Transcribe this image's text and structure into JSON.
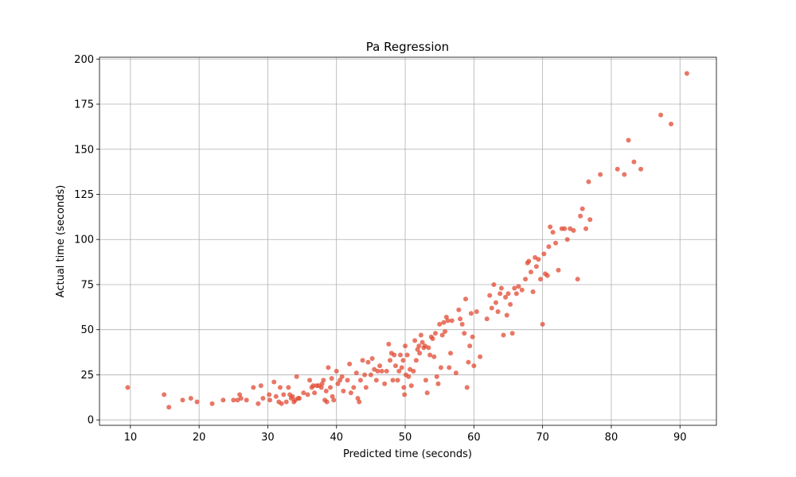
{
  "chart_data": {
    "type": "scatter",
    "title": "Pa Regression",
    "xlabel": "Predicted time (seconds)",
    "ylabel": "Actual time (seconds)",
    "xlim": [
      5.5,
      95.3
    ],
    "ylim": [
      -3,
      201
    ],
    "xticks": [
      10,
      20,
      30,
      40,
      50,
      60,
      70,
      80,
      90
    ],
    "yticks": [
      0,
      25,
      50,
      75,
      100,
      125,
      150,
      175,
      200
    ],
    "grid": true,
    "marker_color": "#e24a33",
    "marker_alpha": 0.75,
    "points": [
      [
        9.6,
        18
      ],
      [
        14.9,
        14
      ],
      [
        15.6,
        7
      ],
      [
        17.6,
        11
      ],
      [
        18.8,
        12
      ],
      [
        19.7,
        10
      ],
      [
        21.9,
        9
      ],
      [
        23.5,
        11
      ],
      [
        25.0,
        11
      ],
      [
        25.6,
        11
      ],
      [
        25.9,
        14
      ],
      [
        26.1,
        12
      ],
      [
        26.9,
        11
      ],
      [
        27.9,
        18
      ],
      [
        28.6,
        9
      ],
      [
        29.0,
        19
      ],
      [
        29.3,
        12
      ],
      [
        30.2,
        14
      ],
      [
        30.3,
        11
      ],
      [
        30.9,
        21
      ],
      [
        31.2,
        13
      ],
      [
        31.6,
        10
      ],
      [
        31.8,
        18
      ],
      [
        32.0,
        9
      ],
      [
        32.3,
        14
      ],
      [
        32.7,
        10
      ],
      [
        33.0,
        18
      ],
      [
        33.2,
        14
      ],
      [
        33.4,
        12
      ],
      [
        33.6,
        13
      ],
      [
        33.8,
        10
      ],
      [
        34.0,
        11
      ],
      [
        34.2,
        24
      ],
      [
        34.4,
        12
      ],
      [
        34.6,
        12
      ],
      [
        35.2,
        15
      ],
      [
        35.8,
        14
      ],
      [
        36.1,
        22
      ],
      [
        36.4,
        18
      ],
      [
        36.6,
        19
      ],
      [
        36.8,
        15
      ],
      [
        37.1,
        19
      ],
      [
        37.4,
        19
      ],
      [
        37.8,
        18
      ],
      [
        37.9,
        20
      ],
      [
        38.1,
        22
      ],
      [
        38.3,
        11
      ],
      [
        38.5,
        16
      ],
      [
        38.6,
        10
      ],
      [
        38.8,
        29
      ],
      [
        39.1,
        18
      ],
      [
        39.3,
        23
      ],
      [
        39.4,
        13
      ],
      [
        39.6,
        11
      ],
      [
        40.0,
        27
      ],
      [
        40.2,
        20
      ],
      [
        40.5,
        22
      ],
      [
        40.8,
        24
      ],
      [
        41.0,
        16
      ],
      [
        41.6,
        22
      ],
      [
        41.9,
        31
      ],
      [
        42.1,
        15
      ],
      [
        42.5,
        18
      ],
      [
        42.9,
        26
      ],
      [
        43.1,
        12
      ],
      [
        43.3,
        10
      ],
      [
        43.5,
        22
      ],
      [
        43.8,
        33
      ],
      [
        44.1,
        25
      ],
      [
        44.3,
        18
      ],
      [
        44.6,
        32
      ],
      [
        45.0,
        25
      ],
      [
        45.2,
        34
      ],
      [
        45.5,
        28
      ],
      [
        45.8,
        22
      ],
      [
        46.0,
        27
      ],
      [
        46.3,
        30
      ],
      [
        46.6,
        27
      ],
      [
        47.0,
        20
      ],
      [
        47.3,
        27
      ],
      [
        47.6,
        42
      ],
      [
        47.8,
        33
      ],
      [
        48.0,
        37
      ],
      [
        48.2,
        22
      ],
      [
        48.4,
        36
      ],
      [
        48.6,
        30
      ],
      [
        48.9,
        22
      ],
      [
        49.1,
        27
      ],
      [
        49.3,
        36
      ],
      [
        49.5,
        29
      ],
      [
        49.7,
        33
      ],
      [
        49.8,
        18
      ],
      [
        49.9,
        14
      ],
      [
        50.0,
        41
      ],
      [
        50.1,
        25
      ],
      [
        50.3,
        36
      ],
      [
        50.5,
        24
      ],
      [
        50.7,
        28
      ],
      [
        50.9,
        19
      ],
      [
        51.2,
        27
      ],
      [
        51.4,
        44
      ],
      [
        51.6,
        33
      ],
      [
        51.8,
        39
      ],
      [
        52.0,
        41
      ],
      [
        52.1,
        37
      ],
      [
        52.3,
        47
      ],
      [
        52.5,
        43
      ],
      [
        52.7,
        40
      ],
      [
        52.9,
        41
      ],
      [
        53.0,
        22
      ],
      [
        53.2,
        15
      ],
      [
        53.4,
        40
      ],
      [
        53.6,
        36
      ],
      [
        53.8,
        46
      ],
      [
        54.0,
        45
      ],
      [
        54.2,
        35
      ],
      [
        54.4,
        48
      ],
      [
        54.6,
        24
      ],
      [
        54.8,
        20
      ],
      [
        55.0,
        53
      ],
      [
        55.2,
        29
      ],
      [
        55.4,
        47
      ],
      [
        55.6,
        54
      ],
      [
        55.8,
        49
      ],
      [
        56.0,
        57
      ],
      [
        56.2,
        55
      ],
      [
        56.4,
        29
      ],
      [
        56.6,
        37
      ],
      [
        56.8,
        55
      ],
      [
        57.4,
        26
      ],
      [
        57.8,
        61
      ],
      [
        58.0,
        56
      ],
      [
        58.3,
        53
      ],
      [
        58.6,
        48
      ],
      [
        58.8,
        67
      ],
      [
        59.0,
        18
      ],
      [
        59.2,
        32
      ],
      [
        59.4,
        41
      ],
      [
        59.6,
        59
      ],
      [
        59.8,
        46
      ],
      [
        60.0,
        30
      ],
      [
        60.4,
        60
      ],
      [
        60.9,
        35
      ],
      [
        61.9,
        56
      ],
      [
        62.3,
        69
      ],
      [
        62.6,
        62
      ],
      [
        62.9,
        75
      ],
      [
        63.2,
        65
      ],
      [
        63.5,
        60
      ],
      [
        63.8,
        70
      ],
      [
        64.0,
        73
      ],
      [
        64.3,
        47
      ],
      [
        64.6,
        68
      ],
      [
        64.8,
        58
      ],
      [
        65.0,
        70
      ],
      [
        65.3,
        64
      ],
      [
        65.6,
        48
      ],
      [
        65.9,
        73
      ],
      [
        66.2,
        70
      ],
      [
        66.5,
        74
      ],
      [
        67.0,
        72
      ],
      [
        67.5,
        78
      ],
      [
        67.8,
        87
      ],
      [
        68.0,
        88
      ],
      [
        68.3,
        82
      ],
      [
        68.6,
        71
      ],
      [
        68.9,
        90
      ],
      [
        69.1,
        85
      ],
      [
        69.4,
        89
      ],
      [
        69.7,
        78
      ],
      [
        70.0,
        53
      ],
      [
        70.2,
        92
      ],
      [
        70.4,
        81
      ],
      [
        70.7,
        80
      ],
      [
        70.9,
        96
      ],
      [
        71.1,
        107
      ],
      [
        71.5,
        104
      ],
      [
        71.9,
        98
      ],
      [
        72.3,
        83
      ],
      [
        72.8,
        106
      ],
      [
        73.2,
        106
      ],
      [
        73.6,
        100
      ],
      [
        74.0,
        106
      ],
      [
        74.5,
        105
      ],
      [
        75.1,
        78
      ],
      [
        75.5,
        113
      ],
      [
        75.8,
        117
      ],
      [
        76.3,
        106
      ],
      [
        76.7,
        132
      ],
      [
        76.9,
        111
      ],
      [
        78.4,
        136
      ],
      [
        80.9,
        139
      ],
      [
        81.9,
        136
      ],
      [
        82.5,
        155
      ],
      [
        83.3,
        143
      ],
      [
        84.3,
        139
      ],
      [
        87.2,
        169
      ],
      [
        88.7,
        164
      ],
      [
        91.0,
        192
      ]
    ]
  }
}
